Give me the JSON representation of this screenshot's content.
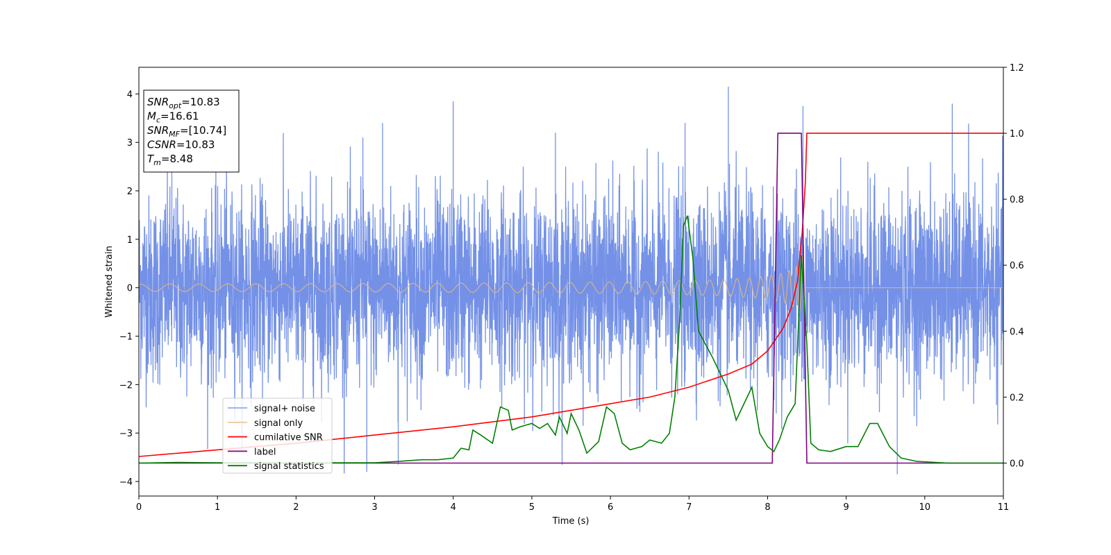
{
  "chart_data": {
    "type": "line",
    "xlabel": "Time (s)",
    "ylabel": "Whitened strain",
    "xlim": [
      0,
      11
    ],
    "ylim_left": [
      -4.3,
      4.55
    ],
    "ylim_right": [
      -0.1,
      1.2
    ],
    "x_ticks": [
      "0",
      "1",
      "2",
      "3",
      "4",
      "5",
      "6",
      "7",
      "8",
      "9",
      "10",
      "11"
    ],
    "y_ticks_left": [
      "−4",
      "−3",
      "−2",
      "−1",
      "0",
      "1",
      "2",
      "3",
      "4"
    ],
    "y_ticks_right": [
      "0.0",
      "0.2",
      "0.4",
      "0.6",
      "0.8",
      "1.0",
      "1.2"
    ],
    "legend_position": "lower-left",
    "annotation": {
      "lines": [
        {
          "var": "SNR",
          "sub": "opt",
          "value": "=10.83"
        },
        {
          "var": "M",
          "sub": "c",
          "value": "=16.61"
        },
        {
          "var": "SNR",
          "sub": "MF",
          "value": "=[10.74]"
        },
        {
          "var": "CSNR",
          "sub": "",
          "value": "=10.83"
        },
        {
          "var": "T",
          "sub": "m",
          "value": "=8.48"
        }
      ]
    },
    "series": [
      {
        "name": "signal+ noise",
        "color": "#6d8be6",
        "axis": "left",
        "style": "noise",
        "sigma": 1.0,
        "peaks": [
          [
            0.42,
            2.6
          ],
          [
            2.85,
            3.1
          ],
          [
            3.1,
            3.4
          ],
          [
            4.0,
            3.85
          ],
          [
            5.3,
            3.2
          ],
          [
            6.95,
            3.4
          ],
          [
            7.5,
            4.15
          ],
          [
            8.45,
            3.75
          ],
          [
            9.65,
            -3.85
          ],
          [
            10.35,
            3.8
          ],
          [
            2.9,
            -3.8
          ],
          [
            3.3,
            -3.65
          ]
        ]
      },
      {
        "name": "signal only",
        "color": "#e9b778",
        "axis": "left",
        "style": "chirp",
        "t_merge": 8.48,
        "amp_start": 0.03,
        "amp_end": 0.9
      },
      {
        "name": "cumilative SNR",
        "color": "#ff0000",
        "axis": "right",
        "points": [
          [
            0,
            0.02
          ],
          [
            1,
            0.04
          ],
          [
            2,
            0.06
          ],
          [
            3,
            0.085
          ],
          [
            4,
            0.11
          ],
          [
            5,
            0.14
          ],
          [
            6,
            0.18
          ],
          [
            6.5,
            0.2
          ],
          [
            7,
            0.23
          ],
          [
            7.5,
            0.27
          ],
          [
            7.8,
            0.3
          ],
          [
            8.0,
            0.34
          ],
          [
            8.2,
            0.41
          ],
          [
            8.3,
            0.47
          ],
          [
            8.38,
            0.55
          ],
          [
            8.44,
            0.7
          ],
          [
            8.48,
            0.85
          ],
          [
            8.5,
            1.0
          ],
          [
            11,
            1.0
          ]
        ]
      },
      {
        "name": "label",
        "color": "#800080",
        "axis": "right",
        "points": [
          [
            0,
            0
          ],
          [
            8.06,
            0
          ],
          [
            8.13,
            1.0
          ],
          [
            8.43,
            1.0
          ],
          [
            8.5,
            0
          ],
          [
            11,
            0
          ]
        ]
      },
      {
        "name": "signal statistics",
        "color": "#008000",
        "axis": "right",
        "points": [
          [
            0,
            0
          ],
          [
            0.5,
            0.002
          ],
          [
            1,
            0.001
          ],
          [
            1.5,
            0.001
          ],
          [
            2,
            0.0
          ],
          [
            2.5,
            0.001
          ],
          [
            3,
            0.001
          ],
          [
            3.3,
            0.005
          ],
          [
            3.6,
            0.01
          ],
          [
            3.8,
            0.01
          ],
          [
            4.0,
            0.015
          ],
          [
            4.1,
            0.045
          ],
          [
            4.2,
            0.04
          ],
          [
            4.25,
            0.1
          ],
          [
            4.35,
            0.085
          ],
          [
            4.5,
            0.06
          ],
          [
            4.6,
            0.17
          ],
          [
            4.7,
            0.16
          ],
          [
            4.75,
            0.1
          ],
          [
            4.85,
            0.11
          ],
          [
            5.0,
            0.12
          ],
          [
            5.1,
            0.105
          ],
          [
            5.2,
            0.12
          ],
          [
            5.3,
            0.085
          ],
          [
            5.35,
            0.14
          ],
          [
            5.45,
            0.09
          ],
          [
            5.5,
            0.15
          ],
          [
            5.6,
            0.1
          ],
          [
            5.7,
            0.03
          ],
          [
            5.85,
            0.065
          ],
          [
            5.95,
            0.17
          ],
          [
            6.05,
            0.15
          ],
          [
            6.15,
            0.06
          ],
          [
            6.25,
            0.04
          ],
          [
            6.4,
            0.05
          ],
          [
            6.5,
            0.07
          ],
          [
            6.65,
            0.06
          ],
          [
            6.75,
            0.09
          ],
          [
            6.82,
            0.2
          ],
          [
            6.88,
            0.43
          ],
          [
            6.93,
            0.72
          ],
          [
            6.98,
            0.75
          ],
          [
            7.05,
            0.62
          ],
          [
            7.12,
            0.4
          ],
          [
            7.3,
            0.32
          ],
          [
            7.5,
            0.22
          ],
          [
            7.6,
            0.13
          ],
          [
            7.7,
            0.18
          ],
          [
            7.8,
            0.23
          ],
          [
            7.9,
            0.09
          ],
          [
            8.0,
            0.05
          ],
          [
            8.08,
            0.035
          ],
          [
            8.15,
            0.07
          ],
          [
            8.25,
            0.14
          ],
          [
            8.35,
            0.18
          ],
          [
            8.43,
            0.63
          ],
          [
            8.5,
            0.36
          ],
          [
            8.55,
            0.06
          ],
          [
            8.65,
            0.04
          ],
          [
            8.8,
            0.035
          ],
          [
            9.0,
            0.05
          ],
          [
            9.15,
            0.05
          ],
          [
            9.3,
            0.12
          ],
          [
            9.4,
            0.12
          ],
          [
            9.55,
            0.05
          ],
          [
            9.7,
            0.015
          ],
          [
            9.9,
            0.005
          ],
          [
            10.3,
            0.0
          ],
          [
            11,
            0.0
          ]
        ]
      }
    ]
  }
}
